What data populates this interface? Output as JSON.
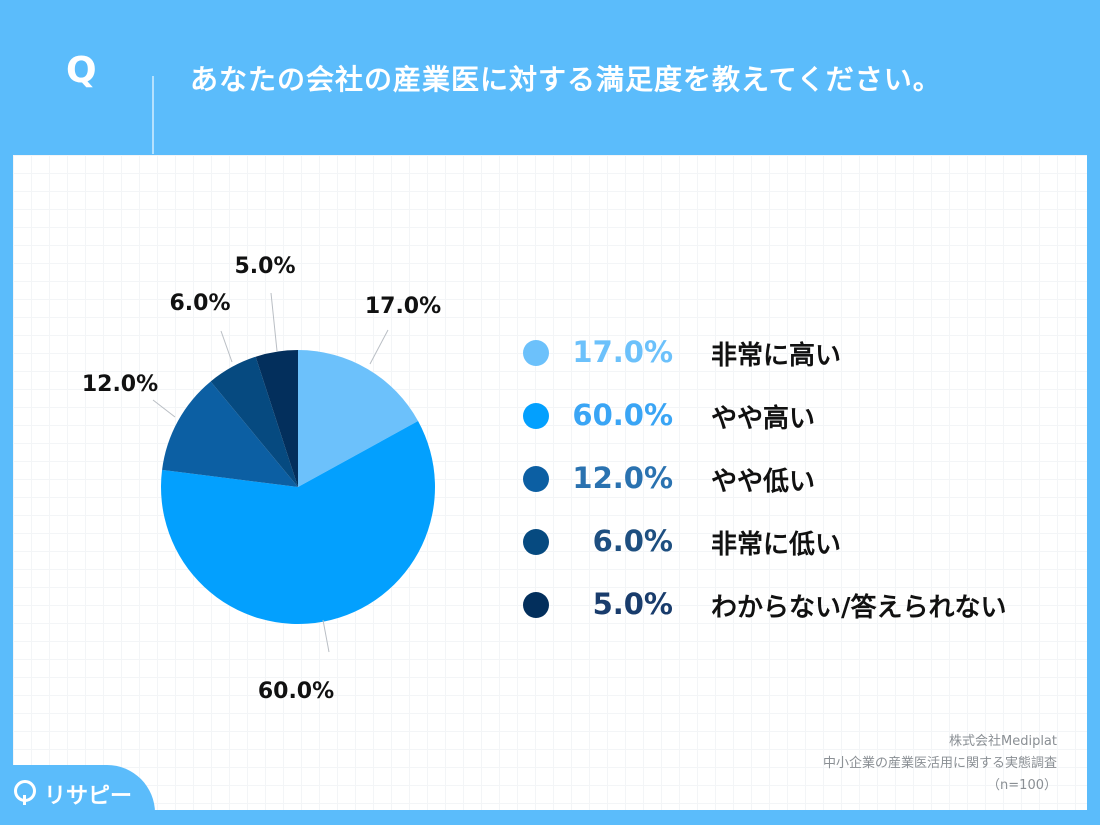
{
  "header": {
    "q_mark": "Q",
    "question": "あなたの会社の産業医に対する満足度を教えてください。"
  },
  "chart_data": {
    "type": "pie",
    "categories": [
      "非常に高い",
      "やや高い",
      "やや低い",
      "非常に低い",
      "わからない/答えられない"
    ],
    "values": [
      17.0,
      60.0,
      12.0,
      6.0,
      5.0
    ],
    "value_labels": [
      "17.0%",
      "60.0%",
      "12.0%",
      "6.0%",
      "5.0%"
    ],
    "colors": [
      "#6cc1fb",
      "#03a0fe",
      "#0c5fa3",
      "#064a80",
      "#032f5c"
    ],
    "start": "12 o'clock",
    "direction": "clockwise",
    "legend_position": "right"
  },
  "legend": {
    "pct_colors": [
      "#6cc1fb",
      "#3aa5f5",
      "#2a72b0",
      "#1e4f80",
      "#193c6c"
    ],
    "items": [
      {
        "pct": "17.0%",
        "label": "非常に高い"
      },
      {
        "pct": "60.0%",
        "label": "やや高い"
      },
      {
        "pct": "12.0%",
        "label": "やや低い"
      },
      {
        "pct": "6.0%",
        "label": "非常に低い"
      },
      {
        "pct": "5.0%",
        "label": "わからない/答えられない"
      }
    ]
  },
  "source": {
    "line1": "株式会社Mediplat",
    "line2": "中小企業の産業医活用に関する実態調査",
    "line3": "（n=100）"
  },
  "logo": {
    "text": "リサピー"
  }
}
